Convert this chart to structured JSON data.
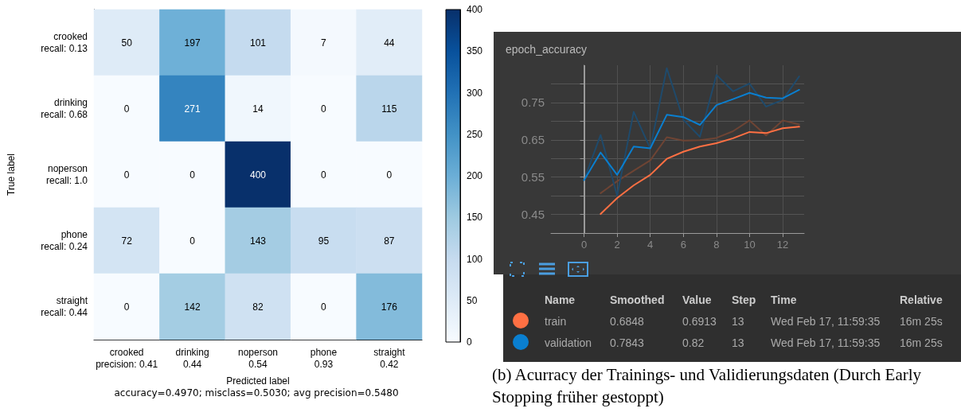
{
  "chart_data": [
    {
      "type": "heatmap",
      "xlabel": "Predicted label",
      "ylabel": "True label",
      "categories": [
        "crooked\nprecision: 0.41",
        "drinking\n0.44",
        "noperson\n0.54",
        "phone\n0.93",
        "straight\n0.42"
      ],
      "y_categories": [
        "crooked\nrecall: 0.13",
        "drinking\nrecall: 0.68",
        "noperson\nrecall: 1.0",
        "phone\nrecall: 0.24",
        "straight\nrecall: 0.44"
      ],
      "cells": [
        [
          50,
          197,
          101,
          7,
          44
        ],
        [
          0,
          271,
          14,
          0,
          115
        ],
        [
          0,
          0,
          400,
          0,
          0
        ],
        [
          72,
          0,
          143,
          95,
          87
        ],
        [
          0,
          142,
          82,
          0,
          176
        ]
      ],
      "data_labels": true,
      "clim": [
        0,
        400
      ],
      "cticks": [
        0,
        50,
        100,
        150,
        200,
        250,
        300,
        350,
        400
      ],
      "annotations": [
        "accuracy=0.4970; misclass=0.5030; avg precision=0.5480"
      ]
    },
    {
      "type": "line",
      "title": "epoch_accuracy",
      "x": [
        0,
        1,
        2,
        3,
        4,
        5,
        6,
        7,
        8,
        9,
        10,
        11,
        12,
        13
      ],
      "series": [
        {
          "color": "#6e4434",
          "values": [
            null,
            0.507,
            0.539,
            0.567,
            0.595,
            0.657,
            0.648,
            0.649,
            0.655,
            0.673,
            0.702,
            0.662,
            0.702,
            0.691
          ]
        },
        {
          "color": "#1f4a6b",
          "values": [
            0.542,
            0.663,
            0.5,
            0.725,
            0.627,
            0.842,
            0.704,
            0.658,
            0.824,
            0.78,
            0.801,
            0.739,
            0.757,
            0.82
          ]
        },
        {
          "name": "train",
          "color": "#ff7043",
          "values": [
            null,
            0.451,
            0.494,
            0.528,
            0.556,
            0.599,
            0.618,
            0.632,
            0.641,
            0.654,
            0.671,
            0.668,
            0.681,
            0.685
          ]
        },
        {
          "name": "validation",
          "color": "#0a7fd0",
          "values": [
            0.542,
            0.616,
            0.556,
            0.632,
            0.627,
            0.717,
            0.711,
            0.69,
            0.743,
            0.759,
            0.776,
            0.763,
            0.761,
            0.784
          ]
        }
      ],
      "xlim": [
        -2,
        13.3
      ],
      "xticks": [
        0,
        2,
        4,
        6,
        8,
        10,
        12
      ],
      "ylim": [
        0.4,
        0.85
      ],
      "yticks": [
        0.45,
        {
          "value": 0.5,
          "label": null
        },
        0.55,
        {
          "value": 0.6,
          "label": null
        },
        0.65,
        {
          "value": 0.7,
          "label": null
        },
        0.75,
        {
          "value": 0.8,
          "label": null
        }
      ],
      "ref_lines": [
        {
          "axis": "x",
          "value": 0,
          "color": "#9a9a9a"
        }
      ],
      "grid": true,
      "legend": false,
      "marker": "none",
      "line_style": "solid",
      "annotations": [
        "(b) Acurracy der Trainings- und Validierungsdaten (Durch Early Stopping früher gestoppt)"
      ]
    },
    {
      "type": "other",
      "annotations": [
        "Name",
        "Smoothed",
        "Value",
        "Step",
        "Time",
        "Relative",
        "0.6848",
        "0.6913",
        "13",
        "Wed Feb 17, 11:59:35",
        "16m 25s",
        "0.7843",
        "0.82",
        "13",
        "Wed Feb 17, 11:59:35",
        "16m 25s"
      ]
    }
  ]
}
